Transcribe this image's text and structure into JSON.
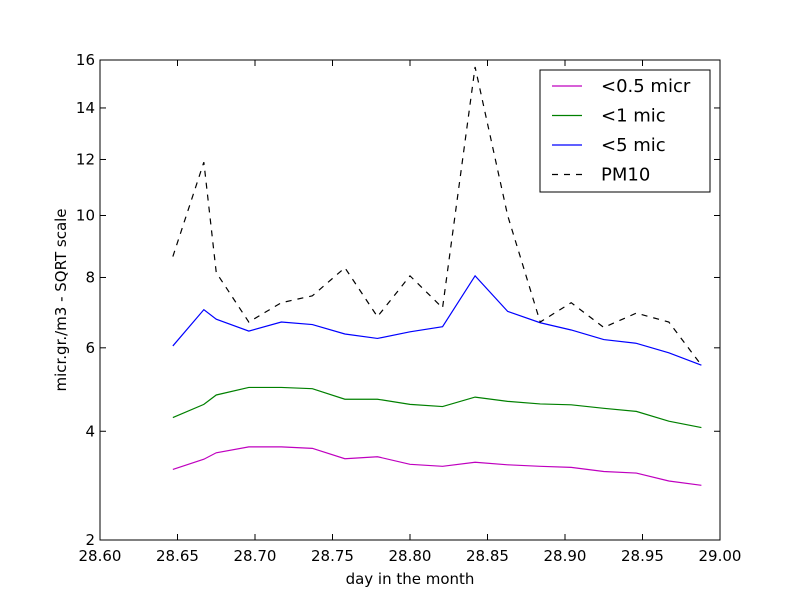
{
  "chart_data": {
    "type": "line",
    "xlabel": "day in the month",
    "ylabel": "micr.gr./m3 - SQRT scale",
    "xlim": [
      28.6,
      29.0
    ],
    "ylim": [
      2,
      16
    ],
    "y_scale": "sqrt",
    "grid": false,
    "legend_placement": "top-right",
    "x_ticks": [
      "28.60",
      "28.65",
      "28.70",
      "28.75",
      "28.80",
      "28.85",
      "28.90",
      "28.95",
      "29.00"
    ],
    "y_ticks": [
      "2",
      "4",
      "6",
      "8",
      "10",
      "12",
      "14",
      "16"
    ],
    "x": [
      28.647,
      28.667,
      28.675,
      28.696,
      28.717,
      28.737,
      28.758,
      28.779,
      28.8,
      28.821,
      28.842,
      28.863,
      28.884,
      28.904,
      28.925,
      28.946,
      28.967,
      28.988
    ],
    "series": [
      {
        "name": "<0.5 micr",
        "color": "#bf00bf",
        "dash": "solid",
        "values": [
          3.22,
          3.42,
          3.55,
          3.67,
          3.67,
          3.64,
          3.43,
          3.47,
          3.32,
          3.28,
          3.36,
          3.31,
          3.28,
          3.26,
          3.18,
          3.15,
          3.0,
          2.92
        ]
      },
      {
        "name": "<1 mic",
        "color": "#008000",
        "dash": "solid",
        "values": [
          4.3,
          4.6,
          4.82,
          5.0,
          5.0,
          4.97,
          4.72,
          4.72,
          4.6,
          4.55,
          4.77,
          4.67,
          4.61,
          4.59,
          4.51,
          4.44,
          4.22,
          4.08
        ]
      },
      {
        "name": "<5 mic",
        "color": "#0000ff",
        "dash": "solid",
        "values": [
          6.05,
          7.05,
          6.78,
          6.45,
          6.7,
          6.63,
          6.37,
          6.25,
          6.43,
          6.57,
          8.05,
          7.0,
          6.68,
          6.48,
          6.22,
          6.12,
          5.87,
          5.55
        ]
      },
      {
        "name": "PM10",
        "color": "#000000",
        "dash": "dashed",
        "values": [
          8.65,
          11.9,
          8.15,
          6.7,
          7.25,
          7.45,
          8.3,
          6.85,
          8.05,
          7.1,
          15.7,
          10.0,
          6.7,
          7.25,
          6.55,
          6.95,
          6.7,
          5.55
        ]
      }
    ]
  }
}
